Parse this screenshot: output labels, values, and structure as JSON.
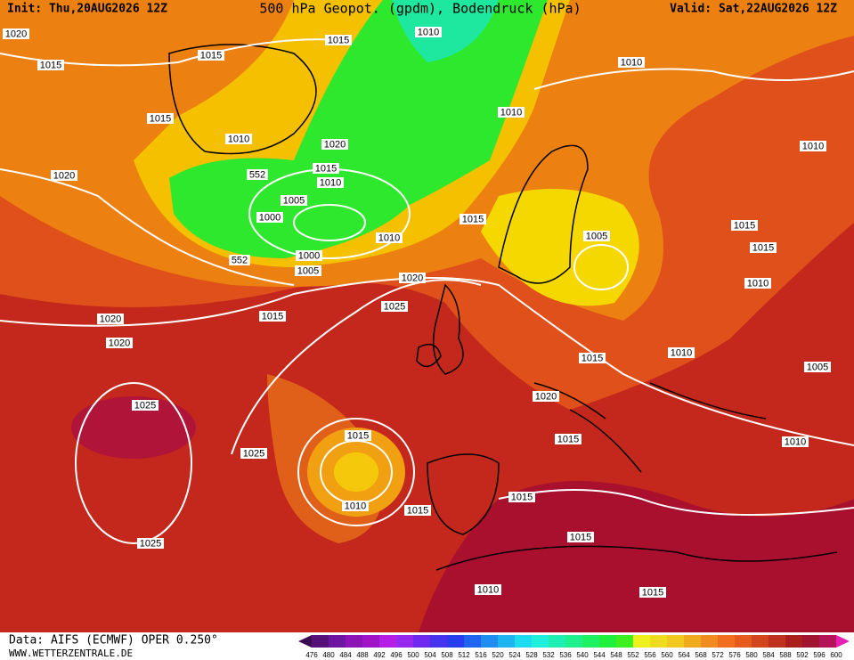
{
  "header": {
    "init": "Init: Thu,20AUG2026 12Z",
    "title": "500 hPa Geopot. (gpdm), Bodendruck (hPa)",
    "valid": "Valid: Sat,22AUG2026 12Z"
  },
  "footer": {
    "data": "Data: AIFS (ECMWF) OPER 0.250°",
    "site": "WWW.WETTERZENTRALE.DE"
  },
  "colorbar": {
    "ticks": [
      476,
      480,
      484,
      488,
      492,
      496,
      500,
      504,
      508,
      512,
      516,
      520,
      524,
      528,
      532,
      536,
      540,
      544,
      548,
      552,
      556,
      560,
      564,
      568,
      572,
      576,
      580,
      584,
      588,
      592,
      596,
      600
    ],
    "colors": [
      "#3c0a50",
      "#55107a",
      "#6e14a0",
      "#8c14b4",
      "#a014c8",
      "#b41ee6",
      "#9628f0",
      "#6e28f0",
      "#4632f0",
      "#283cf0",
      "#1e64f0",
      "#1e8cf0",
      "#1eb4f0",
      "#1edcf0",
      "#1ef0dc",
      "#1ef0b4",
      "#1ef08c",
      "#1ef064",
      "#1ef03c",
      "#3cf01e",
      "#f0f01e",
      "#f0dc1e",
      "#f0c81e",
      "#f0aa1e",
      "#f08c1e",
      "#f06e1e",
      "#e65a1e",
      "#d2461e",
      "#be321e",
      "#aa1e1e",
      "#a01432",
      "#b4145a",
      "#e61eb4"
    ]
  },
  "isobar_labels": [
    "1020",
    "1015",
    "1010",
    "1015",
    "1015",
    "1010",
    "1015",
    "1010",
    "1010",
    "1020",
    "1010",
    "1015",
    "1010",
    "1020",
    "552",
    "1005",
    "1000",
    "1015",
    "1015",
    "1010",
    "1005",
    "1015",
    "552",
    "1000",
    "1005",
    "1020",
    "1010",
    "1025",
    "1020",
    "1015",
    "1020",
    "1010",
    "1015",
    "1005",
    "1020",
    "1025",
    "1015",
    "1015",
    "1010",
    "1025",
    "1015",
    "1010",
    "1015",
    "1015",
    "1025",
    "1010",
    "1015"
  ]
}
